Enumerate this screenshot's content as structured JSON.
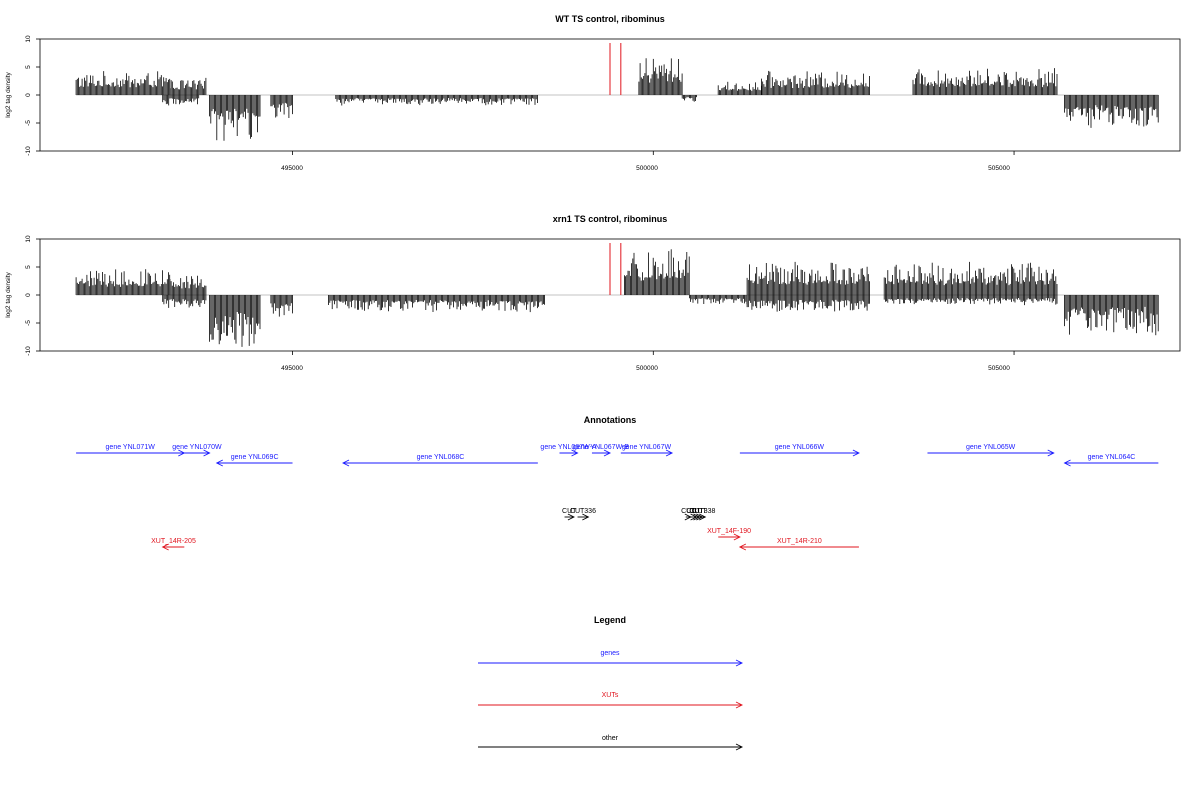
{
  "colors": {
    "axis": "#000000",
    "bars": "#000000",
    "marker": "#e0141e",
    "gene": "#1a1aff",
    "xut": "#e0141e",
    "other": "#000000"
  },
  "chart_data": [
    {
      "type": "bar",
      "title": "WT TS control, ribominus",
      "ylabel": "log2 tag density",
      "xlabel": "",
      "xlim": [
        491500,
        507300
      ],
      "ylim": [
        -10,
        10
      ],
      "yticks": [
        10,
        5,
        0,
        -5,
        -10
      ],
      "xticks": [
        495000,
        500000,
        505000
      ],
      "marker_positions": [
        499400,
        499550
      ],
      "coverage": [
        {
          "start": 492000,
          "end": 493300,
          "value": 3.5
        },
        {
          "start": 493200,
          "end": 493700,
          "value": -1.5
        },
        {
          "start": 493300,
          "end": 493800,
          "value": 2.5
        },
        {
          "start": 493850,
          "end": 494550,
          "value": -7
        },
        {
          "start": 494700,
          "end": 495000,
          "value": -3.5
        },
        {
          "start": 495600,
          "end": 498400,
          "value": -1.5
        },
        {
          "start": 499800,
          "end": 500400,
          "value": 6
        },
        {
          "start": 500400,
          "end": 500600,
          "value": -1
        },
        {
          "start": 500900,
          "end": 501500,
          "value": 2
        },
        {
          "start": 501500,
          "end": 503000,
          "value": 3.5
        },
        {
          "start": 503600,
          "end": 505600,
          "value": 4
        },
        {
          "start": 505700,
          "end": 507000,
          "value": -5
        }
      ]
    },
    {
      "type": "bar",
      "title": "xrn1 TS control, ribominus",
      "ylabel": "log2 tag density",
      "xlabel": "",
      "xlim": [
        491500,
        507300
      ],
      "ylim": [
        -10,
        10
      ],
      "yticks": [
        10,
        5,
        0,
        -5,
        -10
      ],
      "xticks": [
        495000,
        500000,
        505000
      ],
      "marker_positions": [
        499400,
        499550
      ],
      "coverage": [
        {
          "start": 492000,
          "end": 493300,
          "value": 4
        },
        {
          "start": 493200,
          "end": 493800,
          "value": -2
        },
        {
          "start": 493300,
          "end": 493800,
          "value": 3
        },
        {
          "start": 493850,
          "end": 494550,
          "value": -8
        },
        {
          "start": 494700,
          "end": 495000,
          "value": -4
        },
        {
          "start": 495500,
          "end": 498500,
          "value": -2.5
        },
        {
          "start": 499600,
          "end": 500500,
          "value": 7
        },
        {
          "start": 500500,
          "end": 501300,
          "value": -1.5
        },
        {
          "start": 501300,
          "end": 503000,
          "value": 5
        },
        {
          "start": 501300,
          "end": 503000,
          "value": -2.5
        },
        {
          "start": 503200,
          "end": 505600,
          "value": 5
        },
        {
          "start": 503200,
          "end": 505600,
          "value": -1.5
        },
        {
          "start": 505700,
          "end": 507000,
          "value": -6
        }
      ]
    }
  ],
  "annotations": {
    "title": "Annotations",
    "features": [
      {
        "label": "gene YNL071W",
        "kind": "gene",
        "start": 492000,
        "end": 493500,
        "strand": "+",
        "row": 1
      },
      {
        "label": "gene YNL070W",
        "kind": "gene",
        "start": 493500,
        "end": 493850,
        "strand": "+",
        "row": 1
      },
      {
        "label": "gene YNL069C",
        "kind": "gene",
        "start": 493950,
        "end": 495000,
        "strand": "-",
        "row": 2
      },
      {
        "label": "gene YNL068C",
        "kind": "gene",
        "start": 495700,
        "end": 498400,
        "strand": "-",
        "row": 2
      },
      {
        "label": "gene YNL067W-A",
        "kind": "gene",
        "start": 498700,
        "end": 498950,
        "strand": "+",
        "row": 1
      },
      {
        "label": "gene YNL067W-B",
        "kind": "gene",
        "start": 499150,
        "end": 499400,
        "strand": "+",
        "row": 1
      },
      {
        "label": "gene YNL067W",
        "kind": "gene",
        "start": 499550,
        "end": 500260,
        "strand": "+",
        "row": 1
      },
      {
        "label": "gene YNL066W",
        "kind": "gene",
        "start": 501200,
        "end": 502850,
        "strand": "+",
        "row": 1
      },
      {
        "label": "gene YNL065W",
        "kind": "gene",
        "start": 503800,
        "end": 505550,
        "strand": "+",
        "row": 1
      },
      {
        "label": "gene YNL064C",
        "kind": "gene",
        "start": 505700,
        "end": 507000,
        "strand": "-",
        "row": 2
      },
      {
        "label": "CUT",
        "kind": "other",
        "start": 498770,
        "end": 498900,
        "strand": "+",
        "row": 3
      },
      {
        "label": "CUT336",
        "kind": "other",
        "start": 498950,
        "end": 499100,
        "strand": "+",
        "row": 3
      },
      {
        "label": "CUT",
        "kind": "other",
        "start": 500450,
        "end": 500520,
        "strand": "+",
        "row": 3
      },
      {
        "label": "CUT",
        "kind": "other",
        "start": 500520,
        "end": 500600,
        "strand": "+",
        "row": 3
      },
      {
        "label": "CUT",
        "kind": "other",
        "start": 500560,
        "end": 500640,
        "strand": "+",
        "row": 3
      },
      {
        "label": "CUT",
        "kind": "other",
        "start": 500600,
        "end": 500680,
        "strand": "+",
        "row": 3
      },
      {
        "label": "CUT338",
        "kind": "other",
        "start": 500640,
        "end": 500720,
        "strand": "+",
        "row": 3
      },
      {
        "label": "XUT_14R-205",
        "kind": "xut",
        "start": 493200,
        "end": 493500,
        "strand": "-",
        "row": 5
      },
      {
        "label": "XUT_14F-190",
        "kind": "xut",
        "start": 500900,
        "end": 501200,
        "strand": "+",
        "row": 4
      },
      {
        "label": "XUT_14R-210",
        "kind": "xut",
        "start": 501200,
        "end": 502850,
        "strand": "-",
        "row": 5
      }
    ]
  },
  "legend": {
    "title": "Legend",
    "items": [
      {
        "label": "genes",
        "kind": "gene"
      },
      {
        "label": "XUTs",
        "kind": "xut"
      },
      {
        "label": "other",
        "kind": "other"
      }
    ]
  }
}
